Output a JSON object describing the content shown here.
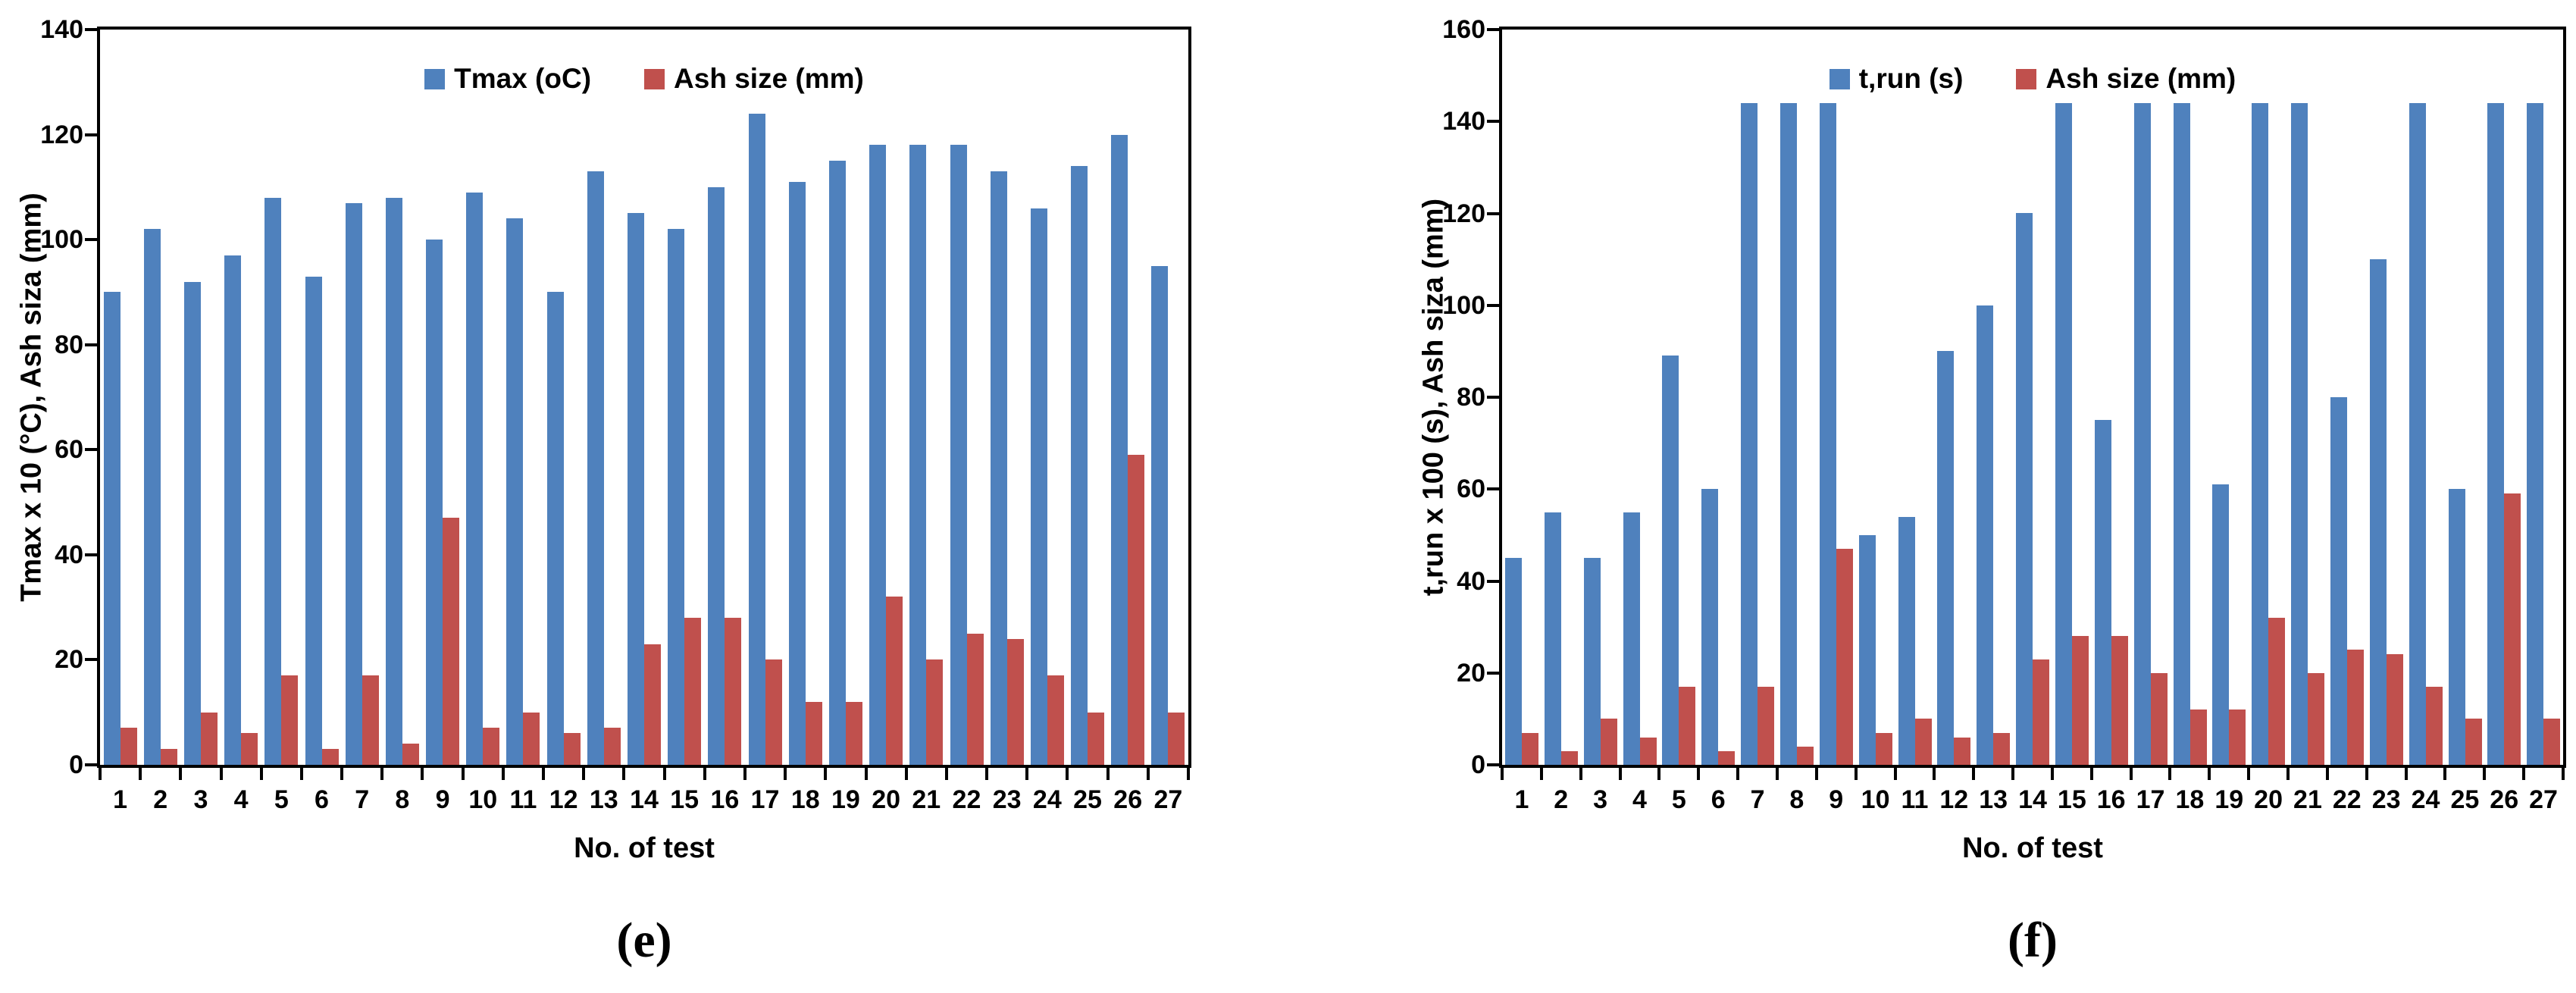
{
  "chart_data": [
    {
      "type": "bar",
      "panel": "e",
      "caption": "(e)",
      "xlabel": "No. of test",
      "ylabel": "Tmax x 10 (°C), Ash siza (mm)",
      "ylim": [
        0,
        140
      ],
      "yticks": [
        0,
        20,
        40,
        60,
        80,
        100,
        120,
        140
      ],
      "grid": false,
      "legend_position": "top-center-inside",
      "categories": [
        "1",
        "2",
        "3",
        "4",
        "5",
        "6",
        "7",
        "8",
        "9",
        "10",
        "11",
        "12",
        "13",
        "14",
        "15",
        "16",
        "17",
        "18",
        "19",
        "20",
        "21",
        "22",
        "23",
        "24",
        "25",
        "26",
        "27"
      ],
      "series": [
        {
          "name": "Tmax (oC)",
          "color": "#4F81BD",
          "values": [
            90,
            102,
            92,
            97,
            108,
            93,
            107,
            108,
            100,
            109,
            104,
            90,
            113,
            105,
            102,
            110,
            124,
            111,
            115,
            118,
            118,
            118,
            113,
            106,
            114,
            120,
            95
          ]
        },
        {
          "name": "Ash size (mm)",
          "color": "#C0504D",
          "values": [
            7,
            3,
            10,
            6,
            17,
            3,
            17,
            4,
            47,
            7,
            10,
            6,
            7,
            23,
            28,
            28,
            20,
            12,
            12,
            32,
            20,
            25,
            24,
            17,
            10,
            59,
            10
          ]
        }
      ]
    },
    {
      "type": "bar",
      "panel": "f",
      "caption": "(f)",
      "xlabel": "No. of test",
      "ylabel": "t,run x 100 (s), Ash siza (mm)",
      "ylim": [
        0,
        160
      ],
      "yticks": [
        0,
        20,
        40,
        60,
        80,
        100,
        120,
        140,
        160
      ],
      "grid": false,
      "legend_position": "top-center-inside",
      "categories": [
        "1",
        "2",
        "3",
        "4",
        "5",
        "6",
        "7",
        "8",
        "9",
        "10",
        "11",
        "12",
        "13",
        "14",
        "15",
        "16",
        "17",
        "18",
        "19",
        "20",
        "21",
        "22",
        "23",
        "24",
        "25",
        "26",
        "27"
      ],
      "series": [
        {
          "name": "t,run (s)",
          "color": "#4F81BD",
          "values": [
            45,
            55,
            45,
            55,
            89,
            60,
            144,
            144,
            144,
            50,
            54,
            90,
            100,
            120,
            144,
            75,
            144,
            144,
            61,
            144,
            144,
            80,
            110,
            144,
            60,
            144,
            144
          ]
        },
        {
          "name": "Ash size (mm)",
          "color": "#C0504D",
          "values": [
            7,
            3,
            10,
            6,
            17,
            3,
            17,
            4,
            47,
            7,
            10,
            6,
            7,
            23,
            28,
            28,
            20,
            12,
            12,
            32,
            20,
            25,
            24,
            17,
            10,
            59,
            10
          ]
        }
      ]
    }
  ]
}
